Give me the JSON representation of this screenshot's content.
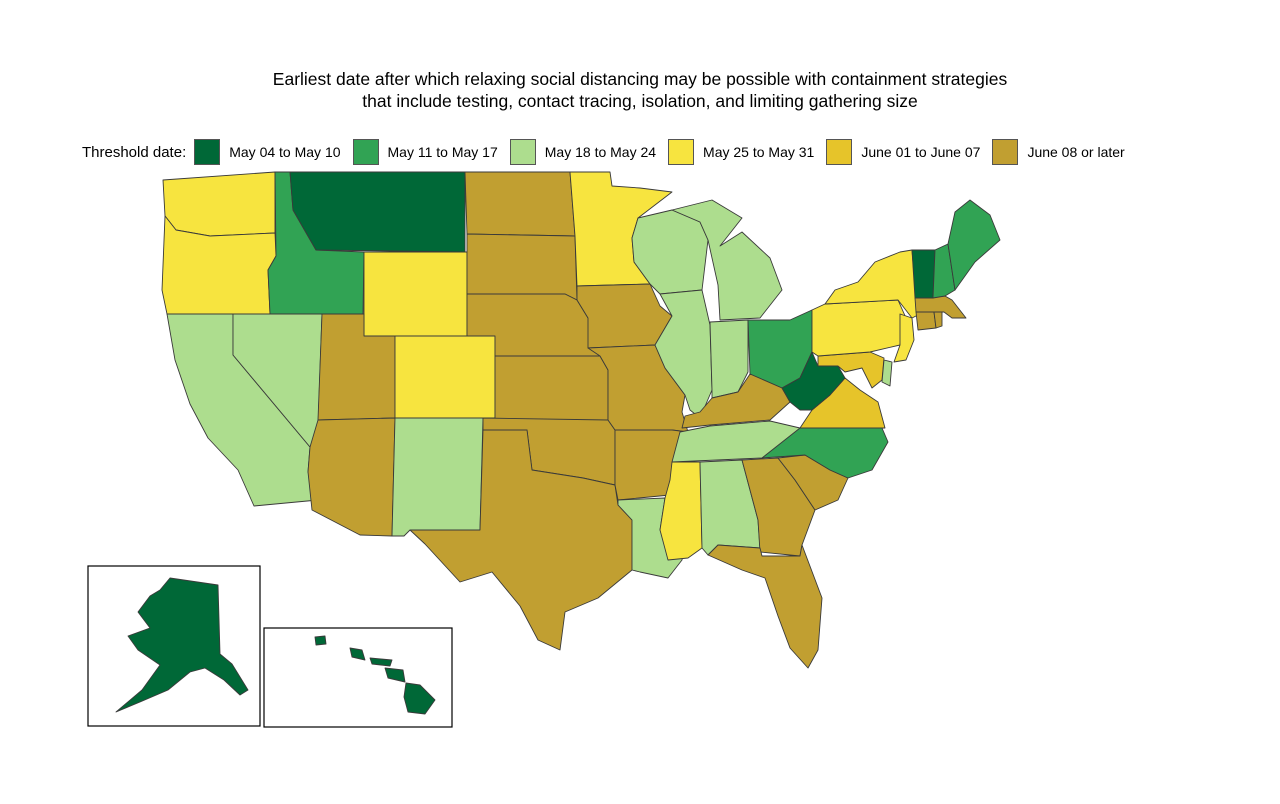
{
  "title": {
    "line1": "Earliest date after which relaxing social distancing may be possible with containment strategies",
    "line2": "that include testing, contact tracing, isolation, and limiting gathering size"
  },
  "legend": {
    "label": "Threshold date:",
    "items": [
      {
        "key": "c1",
        "label": "May 04 to May 10",
        "color": "#006837"
      },
      {
        "key": "c2",
        "label": "May 11 to May 17",
        "color": "#31a354"
      },
      {
        "key": "c3",
        "label": "May 18 to May 24",
        "color": "#addd8e"
      },
      {
        "key": "c4",
        "label": "May 25 to May 31",
        "color": "#f7e43f"
      },
      {
        "key": "c5",
        "label": "June 01 to June 07",
        "color": "#e6c42a"
      },
      {
        "key": "c6",
        "label": "June 08 or later",
        "color": "#c19f31"
      }
    ]
  },
  "states": {
    "WA": "c4",
    "OR": "c4",
    "CA": "c3",
    "NV": "c3",
    "ID": "c2",
    "MT": "c1",
    "WY": "c4",
    "UT": "c6",
    "AZ": "c6",
    "CO": "c4",
    "NM": "c3",
    "ND": "c6",
    "SD": "c6",
    "NE": "c6",
    "KS": "c6",
    "OK": "c6",
    "TX": "c6",
    "MN": "c4",
    "IA": "c6",
    "MO": "c6",
    "AR": "c6",
    "LA": "c3",
    "WI": "c3",
    "IL": "c3",
    "MI": "c3",
    "IN": "c3",
    "OH": "c2",
    "KY": "c6",
    "TN": "c3",
    "MS": "c4",
    "AL": "c3",
    "GA": "c6",
    "FL": "c6",
    "SC": "c6",
    "NC": "c2",
    "VA": "c5",
    "WV": "c1",
    "MD": "c5",
    "DE": "c3",
    "PA": "c4",
    "NJ": "c4",
    "NY": "c4",
    "CT": "c6",
    "RI": "c6",
    "MA": "c6",
    "VT": "c1",
    "NH": "c2",
    "ME": "c2",
    "AK": "c1",
    "HI": "c1"
  }
}
